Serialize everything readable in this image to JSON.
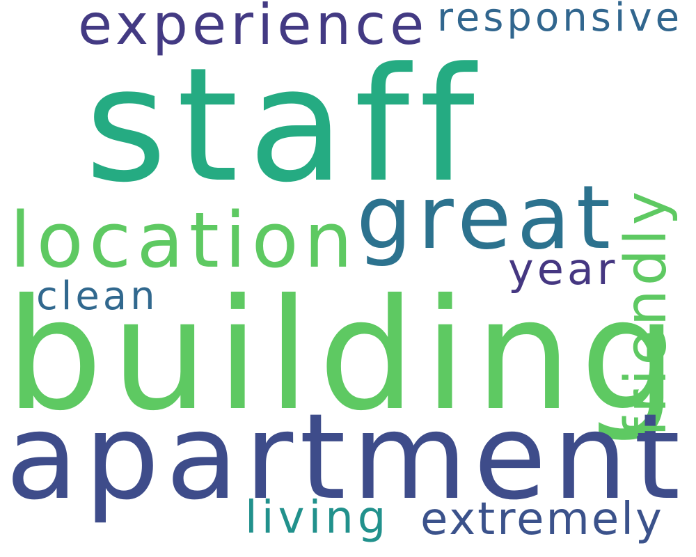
{
  "word_cloud": {
    "background": "#ffffff",
    "words": [
      {
        "id": "staff",
        "text": "staff",
        "color": "#25ab82",
        "orientation": "horizontal"
      },
      {
        "id": "building",
        "text": "building",
        "color": "#5ec962",
        "orientation": "horizontal"
      },
      {
        "id": "apartment",
        "text": "apartment",
        "color": "#3e4c8a",
        "orientation": "horizontal"
      },
      {
        "id": "great",
        "text": "great",
        "color": "#2c728e",
        "orientation": "horizontal"
      },
      {
        "id": "location",
        "text": "location",
        "color": "#5ec962",
        "orientation": "horizontal"
      },
      {
        "id": "experience",
        "text": "experience",
        "color": "#433a83",
        "orientation": "horizontal"
      },
      {
        "id": "responsive",
        "text": "responsive",
        "color": "#31668e",
        "orientation": "horizontal"
      },
      {
        "id": "friendly",
        "text": "friendly",
        "color": "#5ec962",
        "orientation": "vertical"
      },
      {
        "id": "year",
        "text": "year",
        "color": "#453781",
        "orientation": "horizontal"
      },
      {
        "id": "clean",
        "text": "clean",
        "color": "#31688e",
        "orientation": "horizontal"
      },
      {
        "id": "living",
        "text": "living",
        "color": "#21918c",
        "orientation": "horizontal"
      },
      {
        "id": "extremely",
        "text": "extremely",
        "color": "#3b528b",
        "orientation": "horizontal"
      }
    ]
  }
}
